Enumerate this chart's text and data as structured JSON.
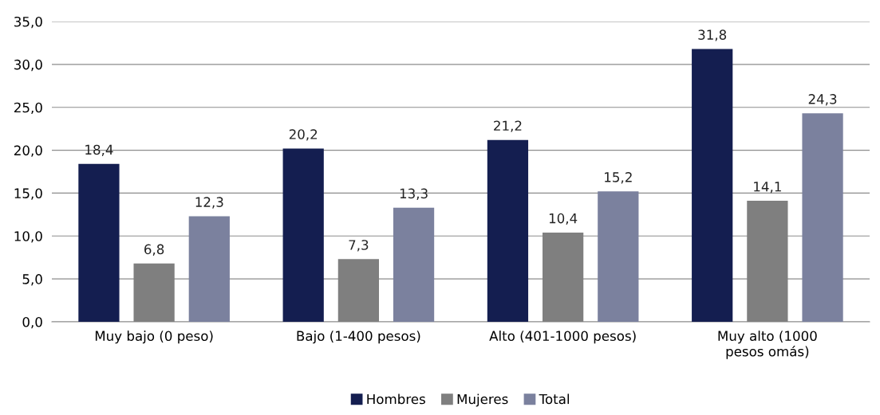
{
  "chart_data": {
    "type": "bar",
    "categories": [
      "Muy bajo (0 peso)",
      "Bajo (1-400 pesos)",
      "Alto (401-1000 pesos)",
      "Muy alto (1000\npesos omás)"
    ],
    "series": [
      {
        "name": "Hombres",
        "color": "#141e50",
        "values": [
          18.4,
          20.2,
          21.2,
          31.8
        ],
        "value_labels": [
          "18,4",
          "20,2",
          "21,2",
          "31,8"
        ]
      },
      {
        "name": "Mujeres",
        "color": "#7f7f7f",
        "values": [
          6.8,
          7.3,
          10.4,
          14.1
        ],
        "value_labels": [
          "6,8",
          "7,3",
          "10,4",
          "14,1"
        ]
      },
      {
        "name": "Total",
        "color": "#7b819e",
        "values": [
          12.3,
          13.3,
          15.2,
          24.3
        ],
        "value_labels": [
          "12,3",
          "13,3",
          "15,2",
          "24,3"
        ]
      }
    ],
    "ylim": [
      0,
      35
    ],
    "yticks": [
      {
        "value": 0,
        "label": "0,0"
      },
      {
        "value": 5,
        "label": "5,0"
      },
      {
        "value": 10,
        "label": "10,0"
      },
      {
        "value": 15,
        "label": "15,0"
      },
      {
        "value": 20,
        "label": "20,0"
      },
      {
        "value": 25,
        "label": "25,0"
      },
      {
        "value": 30,
        "label": "30,0"
      },
      {
        "value": 35,
        "label": "35,0"
      }
    ],
    "grid": "y",
    "legend": "bottom"
  }
}
